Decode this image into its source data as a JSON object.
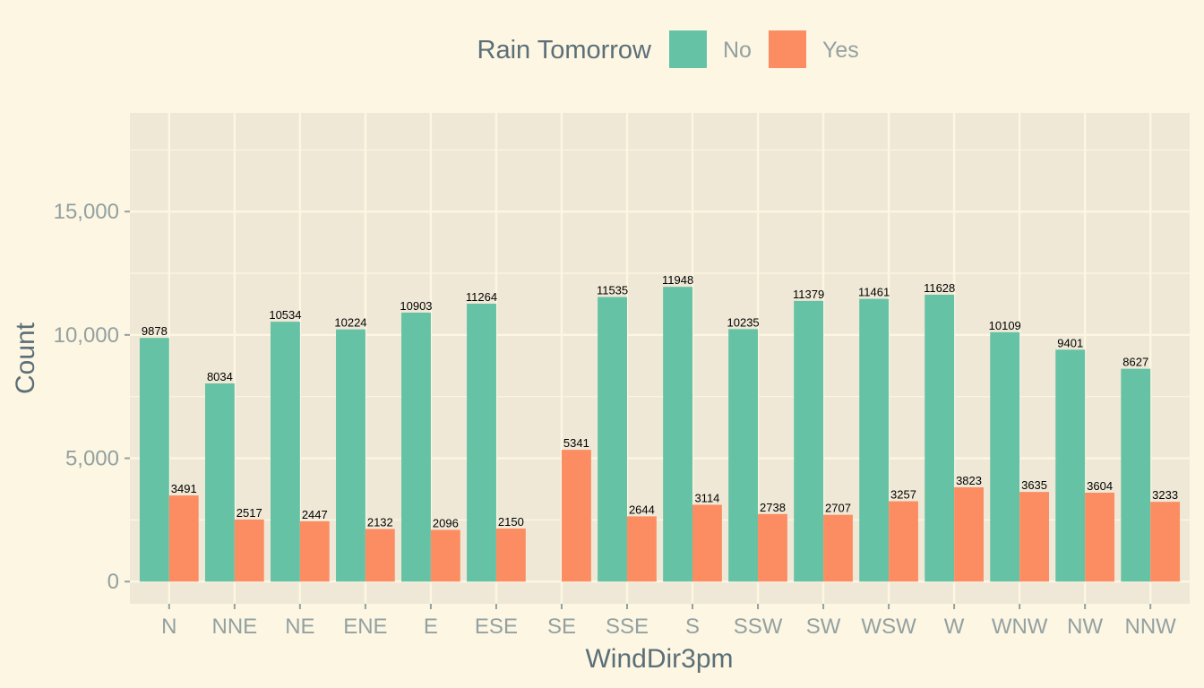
{
  "chart_data": {
    "type": "bar",
    "title": "",
    "xlabel": "WindDir3pm",
    "ylabel": "Count",
    "legend": {
      "title": "Rain Tomorrow",
      "placement": "top"
    },
    "ylim": [
      -900,
      19000
    ],
    "yticks": [
      0,
      5000,
      10000,
      15000
    ],
    "ytick_labels": [
      "0",
      "5,000",
      "10,000",
      "15,000"
    ],
    "categories": [
      "N",
      "NNE",
      "NE",
      "ENE",
      "E",
      "ESE",
      "SE",
      "SSE",
      "S",
      "SSW",
      "SW",
      "WSW",
      "W",
      "WNW",
      "NW",
      "NNW"
    ],
    "series": [
      {
        "name": "No",
        "color": "#66c2a5",
        "values": [
          9878,
          8034,
          10534,
          10224,
          10903,
          11264,
          null,
          11535,
          11948,
          10235,
          11379,
          11461,
          11628,
          10109,
          9401,
          8627
        ]
      },
      {
        "name": "Yes",
        "color": "#fc8d62",
        "values": [
          3491,
          2517,
          2447,
          2132,
          2096,
          2150,
          5341,
          2644,
          3114,
          2738,
          2707,
          3257,
          3823,
          3635,
          3604,
          3233
        ]
      }
    ],
    "grid": true,
    "panel_color": "#efe8d6"
  }
}
